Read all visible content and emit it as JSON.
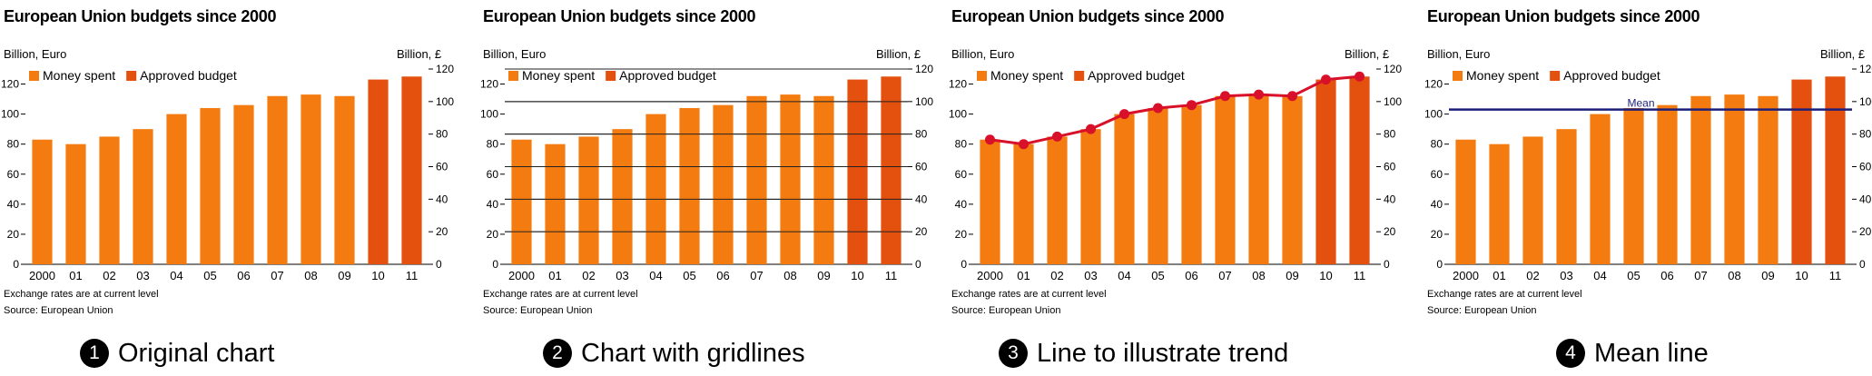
{
  "chart_data": [
    {
      "type": "bar",
      "title": "European Union budgets since 2000",
      "ylabel_left": "Billion, Euro",
      "ylabel_right": "Billion, £",
      "categories": [
        "2000",
        "01",
        "02",
        "03",
        "04",
        "05",
        "06",
        "07",
        "08",
        "09",
        "10",
        "11"
      ],
      "series": [
        {
          "name": "Money spent",
          "color": "#f47b0f",
          "values": [
            83,
            80,
            85,
            90,
            100,
            104,
            106,
            112,
            113,
            112,
            null,
            null
          ]
        },
        {
          "name": "Approved budget",
          "color": "#e4510f",
          "values": [
            null,
            null,
            null,
            null,
            null,
            null,
            null,
            null,
            null,
            null,
            123,
            125
          ]
        }
      ],
      "ylim_left": [
        0,
        130
      ],
      "yticks_left": [
        0,
        20,
        40,
        60,
        80,
        100,
        120
      ],
      "ylim_right": [
        0,
        120
      ],
      "yticks_right": [
        0,
        20,
        40,
        60,
        80,
        100,
        120
      ],
      "legend": "top-left",
      "grid": false,
      "notes": [
        "Exchange rates are at current level",
        "Source: European Union"
      ],
      "caption": {
        "number": "1",
        "text": "Original chart"
      }
    },
    {
      "type": "bar",
      "title": "European Union budgets since 2000",
      "ylabel_left": "Billion, Euro",
      "ylabel_right": "Billion, £",
      "categories": [
        "2000",
        "01",
        "02",
        "03",
        "04",
        "05",
        "06",
        "07",
        "08",
        "09",
        "10",
        "11"
      ],
      "series": [
        {
          "name": "Money spent",
          "color": "#f47b0f",
          "values": [
            83,
            80,
            85,
            90,
            100,
            104,
            106,
            112,
            113,
            112,
            null,
            null
          ]
        },
        {
          "name": "Approved budget",
          "color": "#e4510f",
          "values": [
            null,
            null,
            null,
            null,
            null,
            null,
            null,
            null,
            null,
            null,
            123,
            125
          ]
        }
      ],
      "ylim_left": [
        0,
        130
      ],
      "yticks_left": [
        0,
        20,
        40,
        60,
        80,
        100,
        120
      ],
      "ylim_right": [
        0,
        120
      ],
      "yticks_right": [
        0,
        20,
        40,
        60,
        80,
        100,
        120
      ],
      "legend": "top-left",
      "grid": true,
      "notes": [
        "Exchange rates are at current level",
        "Source: European Union"
      ],
      "caption": {
        "number": "2",
        "text": "Chart with gridlines"
      }
    },
    {
      "type": "bar",
      "title": "European Union budgets since 2000",
      "ylabel_left": "Billion, Euro",
      "ylabel_right": "Billion, £",
      "categories": [
        "2000",
        "01",
        "02",
        "03",
        "04",
        "05",
        "06",
        "07",
        "08",
        "09",
        "10",
        "11"
      ],
      "series": [
        {
          "name": "Money spent",
          "color": "#f47b0f",
          "values": [
            83,
            80,
            85,
            90,
            100,
            104,
            106,
            112,
            113,
            112,
            null,
            null
          ]
        },
        {
          "name": "Approved budget",
          "color": "#e4510f",
          "values": [
            null,
            null,
            null,
            null,
            null,
            null,
            null,
            null,
            null,
            null,
            123,
            125
          ]
        }
      ],
      "trend_line": {
        "color": "#d8102a",
        "values": [
          83,
          80,
          85,
          90,
          100,
          104,
          106,
          112,
          113,
          112,
          123,
          125
        ]
      },
      "ylim_left": [
        0,
        130
      ],
      "yticks_left": [
        0,
        20,
        40,
        60,
        80,
        100,
        120
      ],
      "ylim_right": [
        0,
        120
      ],
      "yticks_right": [
        0,
        20,
        40,
        60,
        80,
        100,
        120
      ],
      "legend": "top-left",
      "grid": false,
      "notes": [
        "Exchange rates are at current level",
        "Source: European Union"
      ],
      "caption": {
        "number": "3",
        "text": "Line to illustrate trend"
      }
    },
    {
      "type": "bar",
      "title": "European Union budgets since 2000",
      "ylabel_left": "Billion, Euro",
      "ylabel_right": "Billion, £",
      "categories": [
        "2000",
        "01",
        "02",
        "03",
        "04",
        "05",
        "06",
        "07",
        "08",
        "09",
        "10",
        "11"
      ],
      "series": [
        {
          "name": "Money spent",
          "color": "#f47b0f",
          "values": [
            83,
            80,
            85,
            90,
            100,
            104,
            106,
            112,
            113,
            112,
            null,
            null
          ]
        },
        {
          "name": "Approved budget",
          "color": "#e4510f",
          "values": [
            null,
            null,
            null,
            null,
            null,
            null,
            null,
            null,
            null,
            null,
            123,
            125
          ]
        }
      ],
      "mean_line": {
        "label": "Mean",
        "value": 103,
        "color": "#1b1f7a"
      },
      "ylim_left": [
        0,
        130
      ],
      "yticks_left": [
        0,
        20,
        40,
        60,
        80,
        100,
        120
      ],
      "ylim_right": [
        0,
        120
      ],
      "yticks_right": [
        0,
        20,
        40,
        60,
        80,
        100,
        120
      ],
      "legend": "top-left",
      "grid": false,
      "notes": [
        "Exchange rates are at current level",
        "Source: European Union"
      ],
      "caption": {
        "number": "4",
        "text": "Mean line"
      }
    }
  ]
}
